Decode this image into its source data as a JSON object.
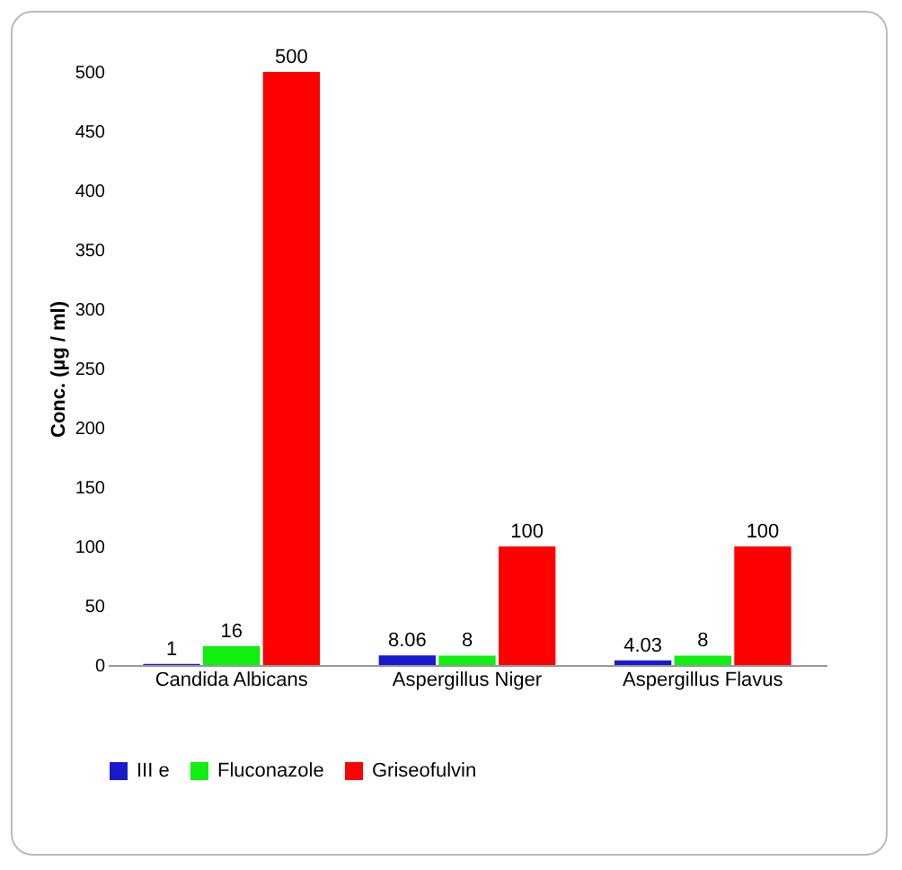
{
  "chart_data": {
    "type": "bar",
    "ylabel": "Conc. (µg / ml)",
    "categories": [
      "Candida Albicans",
      "Aspergillus Niger",
      "Aspergillus Flavus"
    ],
    "series": [
      {
        "name": "III e",
        "color": "#1a1acc",
        "values": [
          1,
          8.06,
          4.03
        ]
      },
      {
        "name": "Fluconazole",
        "color": "#11ee11",
        "values": [
          16,
          8,
          8
        ]
      },
      {
        "name": "Griseofulvin",
        "color": "#ff0000",
        "values": [
          500,
          100,
          100
        ]
      }
    ],
    "ylim": [
      0,
      500
    ],
    "yticks": [
      0,
      50,
      100,
      150,
      200,
      250,
      300,
      350,
      400,
      450,
      500
    ],
    "data_labels": true,
    "legend": "bottom"
  }
}
